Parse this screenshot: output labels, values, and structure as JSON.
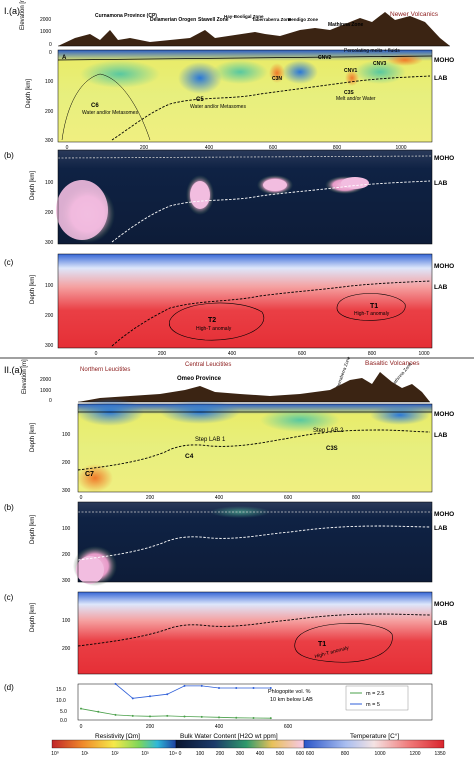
{
  "section1": {
    "label": "I.(a)",
    "profile_labels": [
      "Curnamona Province (CP)",
      "Delamerian Orogen",
      "Stawell Zone",
      "Hay-Booligal Zone",
      "Taberraberra Zone",
      "Bendigo Zone",
      "Mathinna Zone"
    ],
    "newer_volcanics": "Newer Volcanics",
    "marker_A": "A",
    "annotations": {
      "percolating": "Percolating melts + fluids",
      "c6": "C6",
      "c6_text": "Water and/or Metasomes",
      "c5": "C5",
      "c5_text": "Water and/or Metasomes",
      "c3n": "C3N",
      "cnv2": "CNV2",
      "cnv1": "CNV1",
      "cnv3": "CNV3",
      "c3s": "C3S",
      "c3s_text": "Melt and/or Water"
    },
    "b_label": "(b)",
    "c_label": "(c)",
    "t2": "T2",
    "t2_text": "High-T anomaly",
    "t1": "T1",
    "t1_text": "High-T anomaly",
    "x_ticks": [
      "0",
      "200",
      "400",
      "600",
      "800",
      "1000"
    ]
  },
  "section2": {
    "label": "II.(a)",
    "northern_leucitites": "Northern Leucitites",
    "central_leucitites": "Central Leucitites",
    "omeo": "Omeo Province",
    "basaltic": "Basaltic Volcanoes",
    "taberraberra": "Taberraberra Zone",
    "mathinna": "Mathinna Zone",
    "step_lab_1": "Step LAB 1",
    "step_lab_2": "Step LAB 2",
    "c4": "C4",
    "c3s": "C3S",
    "c7": "C7",
    "b_label": "(b)",
    "c_label": "(c)",
    "d_label": "(d)",
    "t1": "T1",
    "t1_text": "High-T anomaly",
    "x_ticks": [
      "0",
      "200",
      "400",
      "600",
      "800"
    ]
  },
  "labels": {
    "moho": "MOHO",
    "lab": "LAB",
    "elevation": "Elevation [m]",
    "depth": "Depth [km]",
    "elev_ticks": [
      "2000",
      "1000",
      "0"
    ],
    "depth_ticks": [
      "0",
      "100",
      "200",
      "300"
    ],
    "depth_ticks_short": [
      "100",
      "200",
      "300"
    ]
  },
  "phlogopite": {
    "title_line1": "Phlogopite vol. %",
    "title_line2": "10 km below LAB",
    "legend_m25": "m = 2.5",
    "legend_m5": "m = 5",
    "y_ticks": [
      "15.0",
      "10.0",
      "5.0",
      "0.0"
    ],
    "x_ticks": [
      "0",
      "200",
      "400",
      "600"
    ]
  },
  "colorbars": {
    "resistivity_title": "Resistivity [Ωm]",
    "water_title": "Bulk Water Content [H2O wt ppm]",
    "temperature_title": "Temperature [C°]",
    "resistivity_ticks": [
      "10⁰",
      "10¹",
      "10²",
      "10³",
      "10⁴"
    ],
    "water_ticks": [
      "0",
      "100",
      "200",
      "300",
      "400",
      "500",
      "600"
    ],
    "temperature_ticks": [
      "600",
      "800",
      "1000",
      "1200",
      "1350"
    ]
  },
  "colors": {
    "res_low": "#c0262b",
    "res_high": "#1e3fa0",
    "water_high": "#f7c8e8",
    "water_low": "#0a1530",
    "temp_hot": "#e8343a",
    "temp_cold": "#3a6fd0"
  },
  "chart_data": [
    {
      "type": "line",
      "title": "",
      "ylabel": "",
      "xlabel": "",
      "ylim": [
        0,
        15
      ],
      "xlim": [
        0,
        700
      ],
      "series": [
        {
          "name": "m = 2.5",
          "x": [
            0,
            50,
            100,
            150,
            200,
            250,
            300,
            350,
            400,
            450,
            500,
            550
          ],
          "values": [
            5,
            3.5,
            2,
            1.5,
            1.3,
            1.5,
            1.2,
            1,
            0.8,
            0.6,
            0.5,
            0.4
          ]
        },
        {
          "name": "m = 5",
          "x": [
            100,
            150,
            200,
            250,
            300,
            350,
            400,
            450,
            500,
            550
          ],
          "values": [
            17,
            10,
            11,
            12,
            16,
            16,
            15,
            15,
            15,
            15
          ]
        }
      ]
    }
  ]
}
